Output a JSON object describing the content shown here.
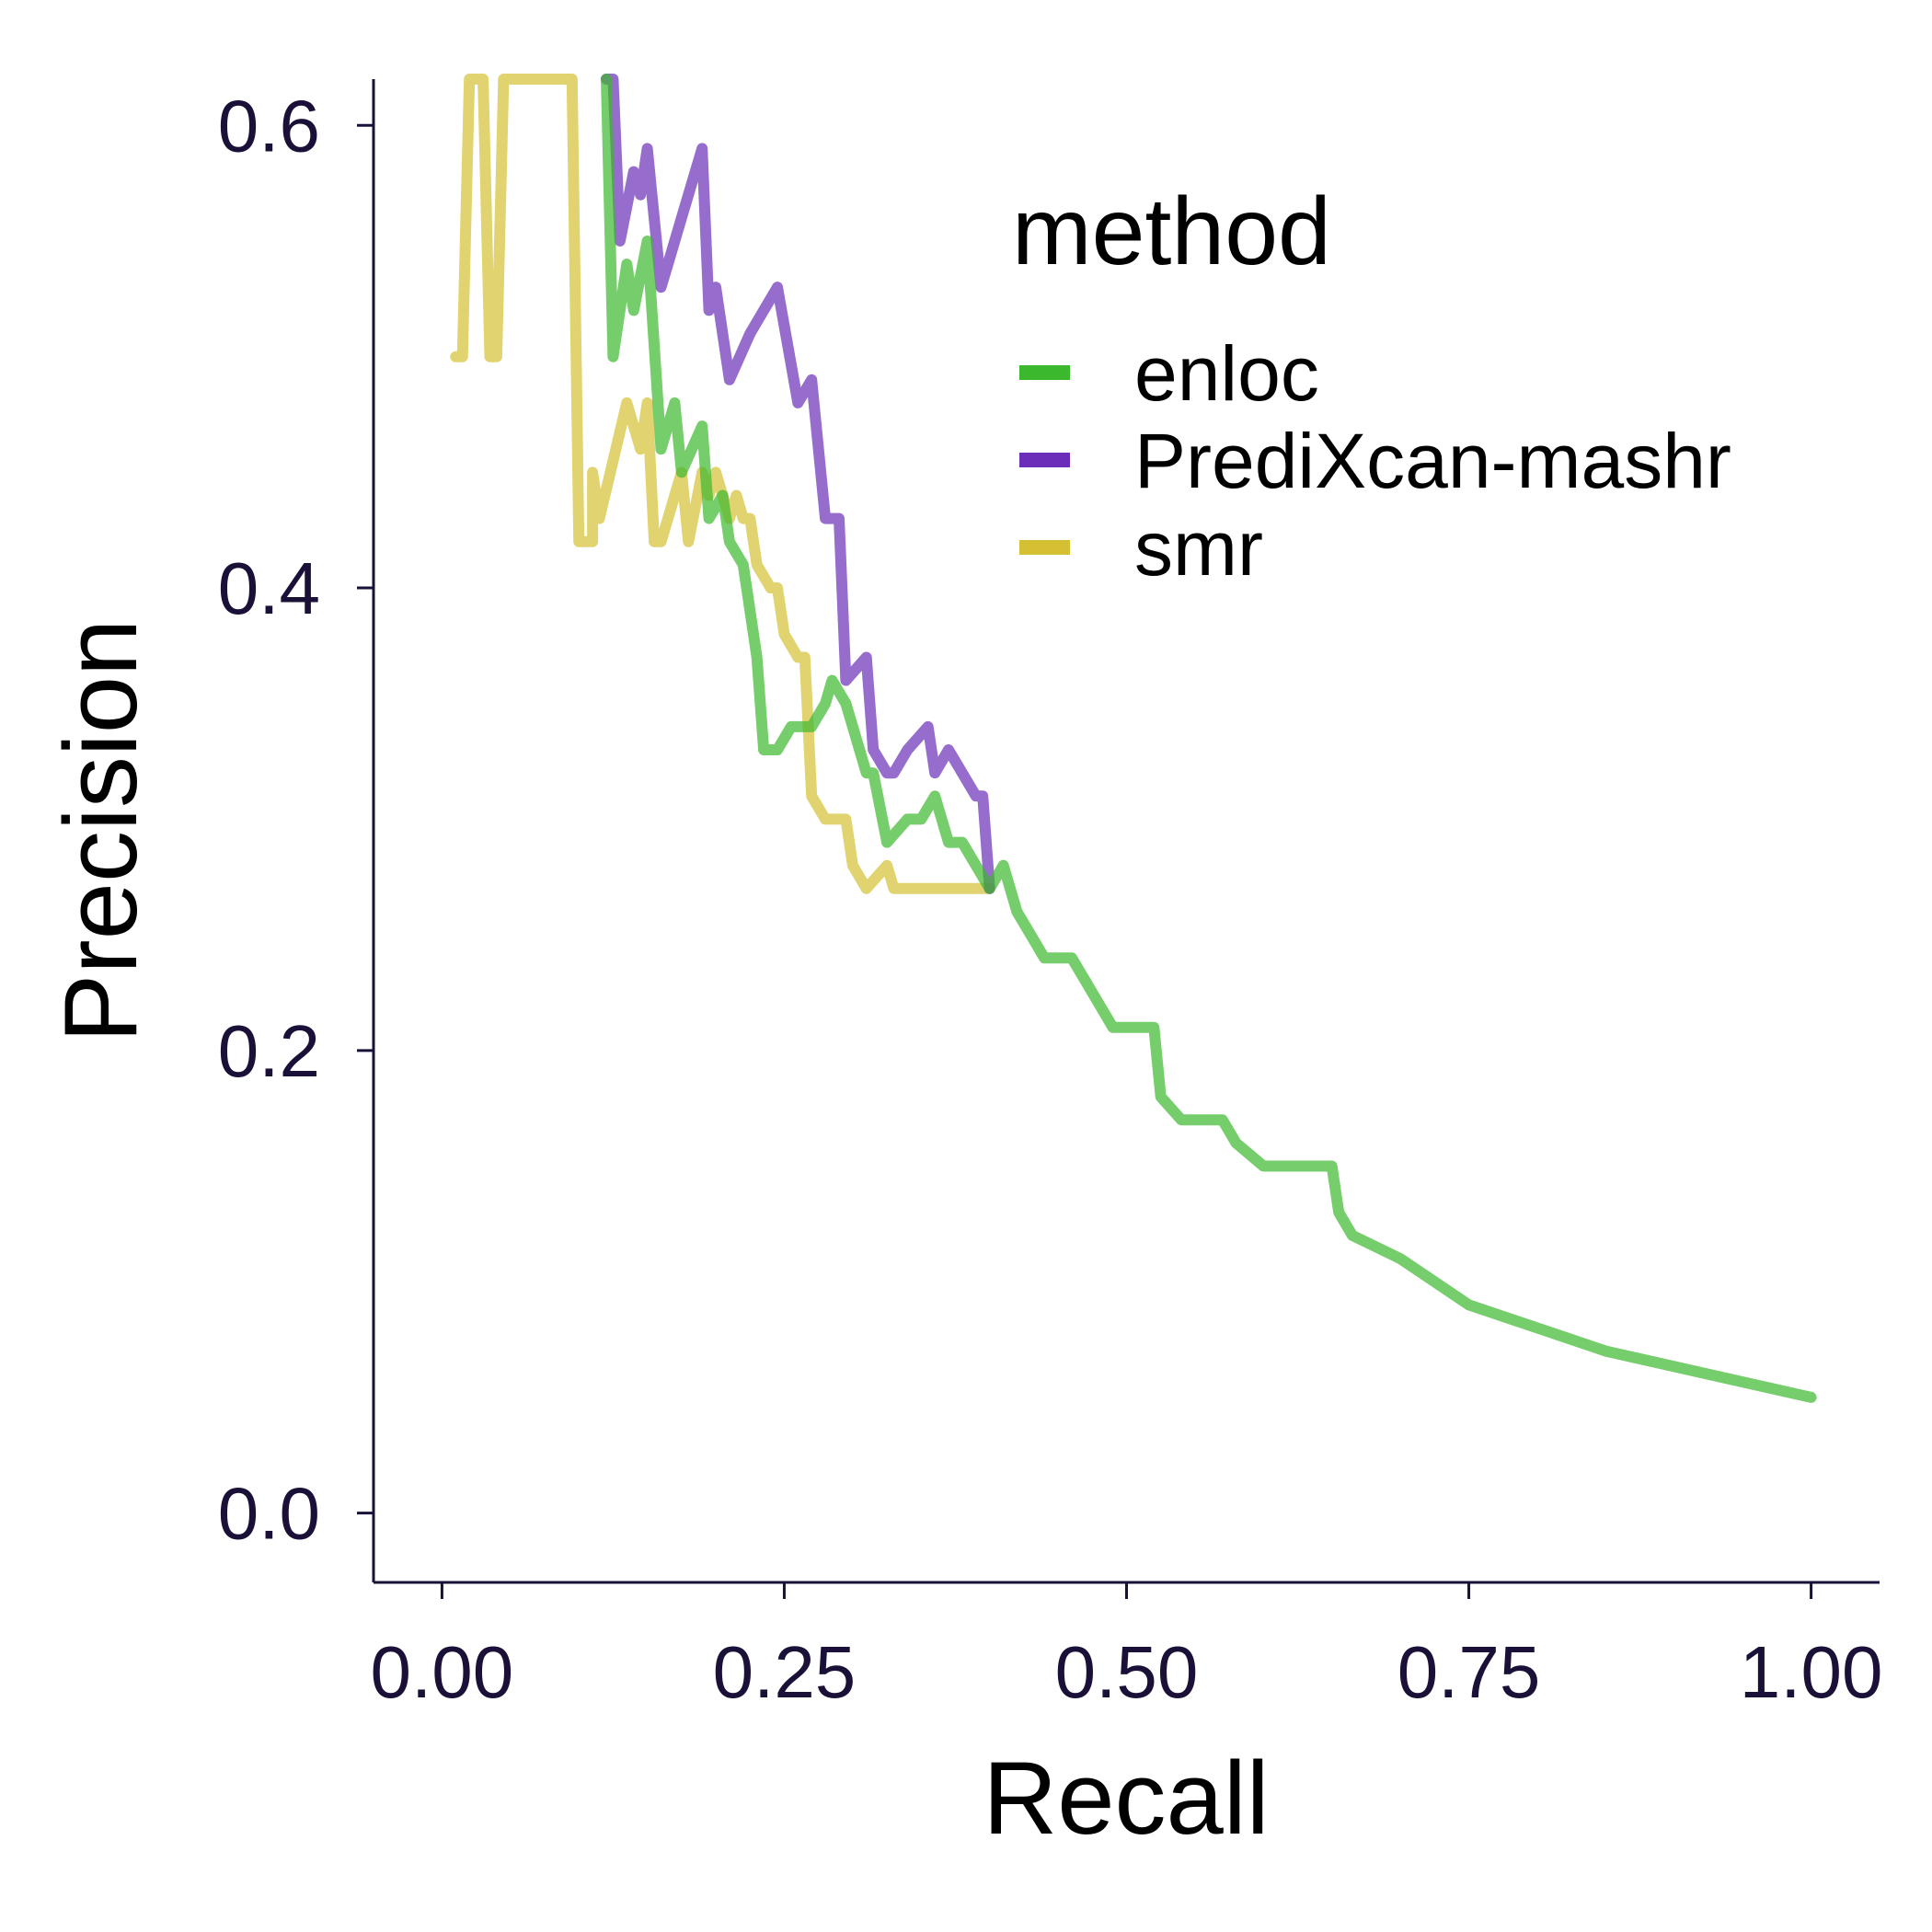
{
  "chart_data": {
    "type": "line",
    "xlabel": "Recall",
    "ylabel": "Precision",
    "xlim": [
      -0.05,
      1.05
    ],
    "ylim": [
      -0.03,
      0.62
    ],
    "xticks": [
      0.0,
      0.25,
      0.5,
      0.75,
      1.0
    ],
    "xtick_labels": [
      "0.00",
      "0.25",
      "0.50",
      "0.75",
      "1.00"
    ],
    "yticks": [
      0.0,
      0.2,
      0.4,
      0.6
    ],
    "ytick_labels": [
      "0.0",
      "0.2",
      "0.4",
      "0.6"
    ],
    "grid": false,
    "legend": {
      "title": "method",
      "position": "right-top-inside"
    },
    "series": [
      {
        "name": "smr",
        "color": "#D4C032",
        "points": [
          [
            0.01,
            0.5
          ],
          [
            0.015,
            0.5
          ],
          [
            0.02,
            0.62
          ],
          [
            0.03,
            0.62
          ],
          [
            0.035,
            0.5
          ],
          [
            0.04,
            0.5
          ],
          [
            0.045,
            0.62
          ],
          [
            0.05,
            0.62
          ],
          [
            0.06,
            0.62
          ],
          [
            0.07,
            0.62
          ],
          [
            0.095,
            0.62
          ],
          [
            0.1,
            0.42
          ],
          [
            0.11,
            0.42
          ],
          [
            0.11,
            0.45
          ],
          [
            0.115,
            0.43
          ],
          [
            0.135,
            0.48
          ],
          [
            0.145,
            0.46
          ],
          [
            0.15,
            0.48
          ],
          [
            0.155,
            0.42
          ],
          [
            0.16,
            0.42
          ],
          [
            0.165,
            0.43
          ],
          [
            0.175,
            0.45
          ],
          [
            0.18,
            0.42
          ],
          [
            0.19,
            0.45
          ],
          [
            0.195,
            0.44
          ],
          [
            0.2,
            0.45
          ],
          [
            0.205,
            0.44
          ],
          [
            0.21,
            0.43
          ],
          [
            0.215,
            0.44
          ],
          [
            0.22,
            0.43
          ],
          [
            0.225,
            0.43
          ],
          [
            0.23,
            0.41
          ],
          [
            0.24,
            0.4
          ],
          [
            0.245,
            0.4
          ],
          [
            0.25,
            0.38
          ],
          [
            0.26,
            0.37
          ],
          [
            0.265,
            0.37
          ],
          [
            0.27,
            0.31
          ],
          [
            0.28,
            0.3
          ],
          [
            0.285,
            0.3
          ],
          [
            0.29,
            0.3
          ],
          [
            0.295,
            0.3
          ],
          [
            0.3,
            0.28
          ],
          [
            0.31,
            0.27
          ],
          [
            0.325,
            0.28
          ],
          [
            0.33,
            0.27
          ],
          [
            0.35,
            0.27
          ],
          [
            0.37,
            0.27
          ],
          [
            0.39,
            0.27
          ],
          [
            0.4,
            0.27
          ]
        ]
      },
      {
        "name": "PrediXcan-mashr",
        "color": "#6A2EB8",
        "points": [
          [
            0.12,
            0.62
          ],
          [
            0.125,
            0.62
          ],
          [
            0.13,
            0.55
          ],
          [
            0.14,
            0.58
          ],
          [
            0.145,
            0.57
          ],
          [
            0.15,
            0.59
          ],
          [
            0.16,
            0.53
          ],
          [
            0.165,
            0.54
          ],
          [
            0.175,
            0.56
          ],
          [
            0.19,
            0.59
          ],
          [
            0.195,
            0.52
          ],
          [
            0.2,
            0.53
          ],
          [
            0.21,
            0.49
          ],
          [
            0.225,
            0.51
          ],
          [
            0.245,
            0.53
          ],
          [
            0.26,
            0.48
          ],
          [
            0.27,
            0.49
          ],
          [
            0.28,
            0.43
          ],
          [
            0.29,
            0.43
          ],
          [
            0.295,
            0.36
          ],
          [
            0.31,
            0.37
          ],
          [
            0.315,
            0.33
          ],
          [
            0.325,
            0.32
          ],
          [
            0.33,
            0.32
          ],
          [
            0.34,
            0.33
          ],
          [
            0.355,
            0.34
          ],
          [
            0.36,
            0.32
          ],
          [
            0.37,
            0.33
          ],
          [
            0.38,
            0.32
          ],
          [
            0.39,
            0.31
          ],
          [
            0.395,
            0.31
          ],
          [
            0.4,
            0.27
          ]
        ]
      },
      {
        "name": "enloc",
        "color": "#3CB82E",
        "points": [
          [
            0.12,
            0.62
          ],
          [
            0.125,
            0.5
          ],
          [
            0.135,
            0.54
          ],
          [
            0.14,
            0.52
          ],
          [
            0.15,
            0.55
          ],
          [
            0.16,
            0.46
          ],
          [
            0.17,
            0.48
          ],
          [
            0.175,
            0.45
          ],
          [
            0.19,
            0.47
          ],
          [
            0.195,
            0.43
          ],
          [
            0.205,
            0.44
          ],
          [
            0.21,
            0.42
          ],
          [
            0.22,
            0.41
          ],
          [
            0.225,
            0.39
          ],
          [
            0.23,
            0.37
          ],
          [
            0.235,
            0.33
          ],
          [
            0.245,
            0.33
          ],
          [
            0.255,
            0.34
          ],
          [
            0.27,
            0.34
          ],
          [
            0.28,
            0.35
          ],
          [
            0.285,
            0.36
          ],
          [
            0.295,
            0.35
          ],
          [
            0.31,
            0.32
          ],
          [
            0.315,
            0.32
          ],
          [
            0.325,
            0.29
          ],
          [
            0.34,
            0.3
          ],
          [
            0.35,
            0.3
          ],
          [
            0.36,
            0.31
          ],
          [
            0.37,
            0.29
          ],
          [
            0.38,
            0.29
          ],
          [
            0.39,
            0.28
          ],
          [
            0.4,
            0.27
          ],
          [
            0.41,
            0.28
          ],
          [
            0.42,
            0.26
          ],
          [
            0.43,
            0.25
          ],
          [
            0.44,
            0.24
          ],
          [
            0.45,
            0.24
          ],
          [
            0.46,
            0.24
          ],
          [
            0.47,
            0.23
          ],
          [
            0.48,
            0.22
          ],
          [
            0.49,
            0.21
          ],
          [
            0.5,
            0.21
          ],
          [
            0.52,
            0.21
          ],
          [
            0.525,
            0.18
          ],
          [
            0.54,
            0.17
          ],
          [
            0.55,
            0.17
          ],
          [
            0.57,
            0.17
          ],
          [
            0.58,
            0.16
          ],
          [
            0.6,
            0.15
          ],
          [
            0.62,
            0.15
          ],
          [
            0.635,
            0.15
          ],
          [
            0.65,
            0.15
          ],
          [
            0.655,
            0.13
          ],
          [
            0.665,
            0.12
          ],
          [
            0.7,
            0.11
          ],
          [
            0.75,
            0.09
          ],
          [
            0.85,
            0.07
          ],
          [
            1.0,
            0.05
          ]
        ]
      }
    ]
  }
}
